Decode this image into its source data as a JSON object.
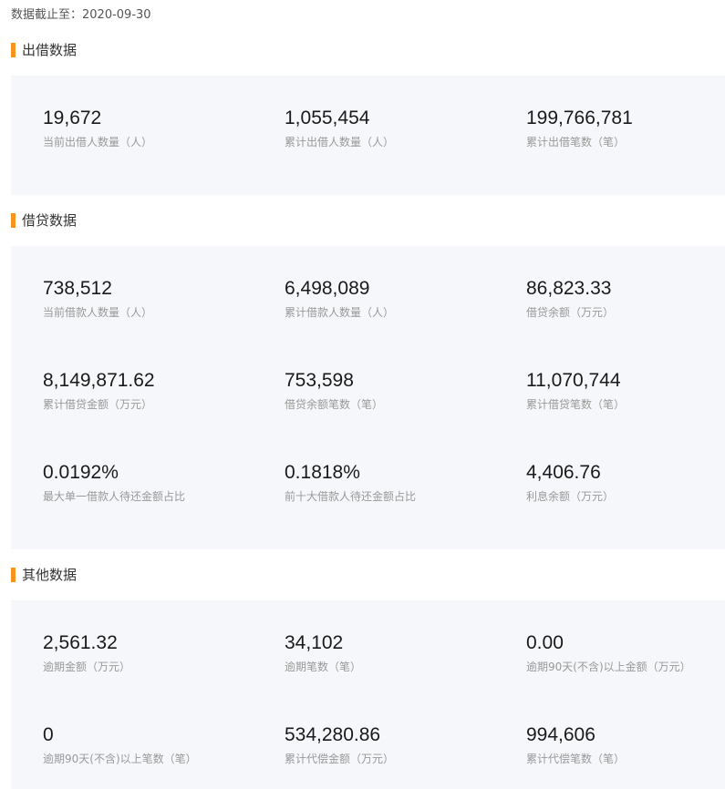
{
  "as_of": "数据截止至：2020-09-30",
  "accent_color": "#f7941d",
  "panel_color": "#f5f7fa",
  "sections": [
    {
      "title": "出借数据",
      "stats": [
        {
          "value": "19,672",
          "label": "当前出借人数量（人）"
        },
        {
          "value": "1,055,454",
          "label": "累计出借人数量（人）"
        },
        {
          "value": "199,766,781",
          "label": "累计出借笔数（笔）"
        }
      ]
    },
    {
      "title": "借贷数据",
      "stats": [
        {
          "value": "738,512",
          "label": "当前借款人数量（人）"
        },
        {
          "value": "6,498,089",
          "label": "累计借款人数量（人）"
        },
        {
          "value": "86,823.33",
          "label": "借贷余额（万元）"
        },
        {
          "value": "8,149,871.62",
          "label": "累计借贷金额（万元）"
        },
        {
          "value": "753,598",
          "label": "借贷余额笔数（笔）"
        },
        {
          "value": "11,070,744",
          "label": "累计借贷笔数（笔）"
        },
        {
          "value": "0.0192%",
          "label": "最大单一借款人待还金额占比"
        },
        {
          "value": "0.1818%",
          "label": "前十大借款人待还金额占比"
        },
        {
          "value": "4,406.76",
          "label": "利息余额（万元）"
        }
      ]
    },
    {
      "title": "其他数据",
      "stats": [
        {
          "value": "2,561.32",
          "label": "逾期金额（万元）"
        },
        {
          "value": "34,102",
          "label": "逾期笔数（笔）"
        },
        {
          "value": "0.00",
          "label": "逾期90天(不含)以上金额（万元）"
        },
        {
          "value": "0",
          "label": "逾期90天(不含)以上笔数（笔）"
        },
        {
          "value": "534,280.86",
          "label": "累计代偿金额（万元）"
        },
        {
          "value": "994,606",
          "label": "累计代偿笔数（笔）"
        }
      ]
    }
  ]
}
